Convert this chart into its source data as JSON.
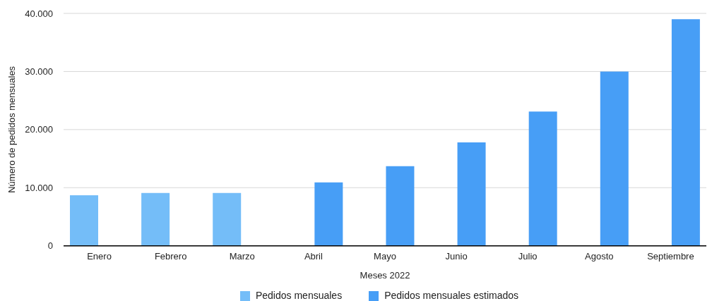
{
  "chart_data": {
    "type": "bar",
    "xlabel": "Meses 2022",
    "ylabel": "Número de pedidos mensuales",
    "categories": [
      "Enero",
      "Febrero",
      "Marzo",
      "Abril",
      "Mayo",
      "Junio",
      "Julio",
      "Agosto",
      "Septiembre"
    ],
    "series": [
      {
        "name": "Pedidos mensuales",
        "color": "#74bdf8",
        "values": [
          8700,
          9100,
          9100,
          null,
          null,
          null,
          null,
          null,
          null
        ]
      },
      {
        "name": "Pedidos mensuales estimados",
        "color": "#479ef6",
        "values": [
          null,
          null,
          null,
          10900,
          13700,
          17800,
          23100,
          30000,
          39000
        ]
      }
    ],
    "ylim": [
      0,
      40000
    ],
    "yticks": [
      0,
      {
        "value": 10000,
        "label": "10.000"
      },
      {
        "value": 20000,
        "label": "20.000"
      },
      {
        "value": 30000,
        "label": "30.000"
      },
      {
        "value": 40000,
        "label": "40.000"
      }
    ],
    "grid": "y",
    "legend": "bottom"
  }
}
